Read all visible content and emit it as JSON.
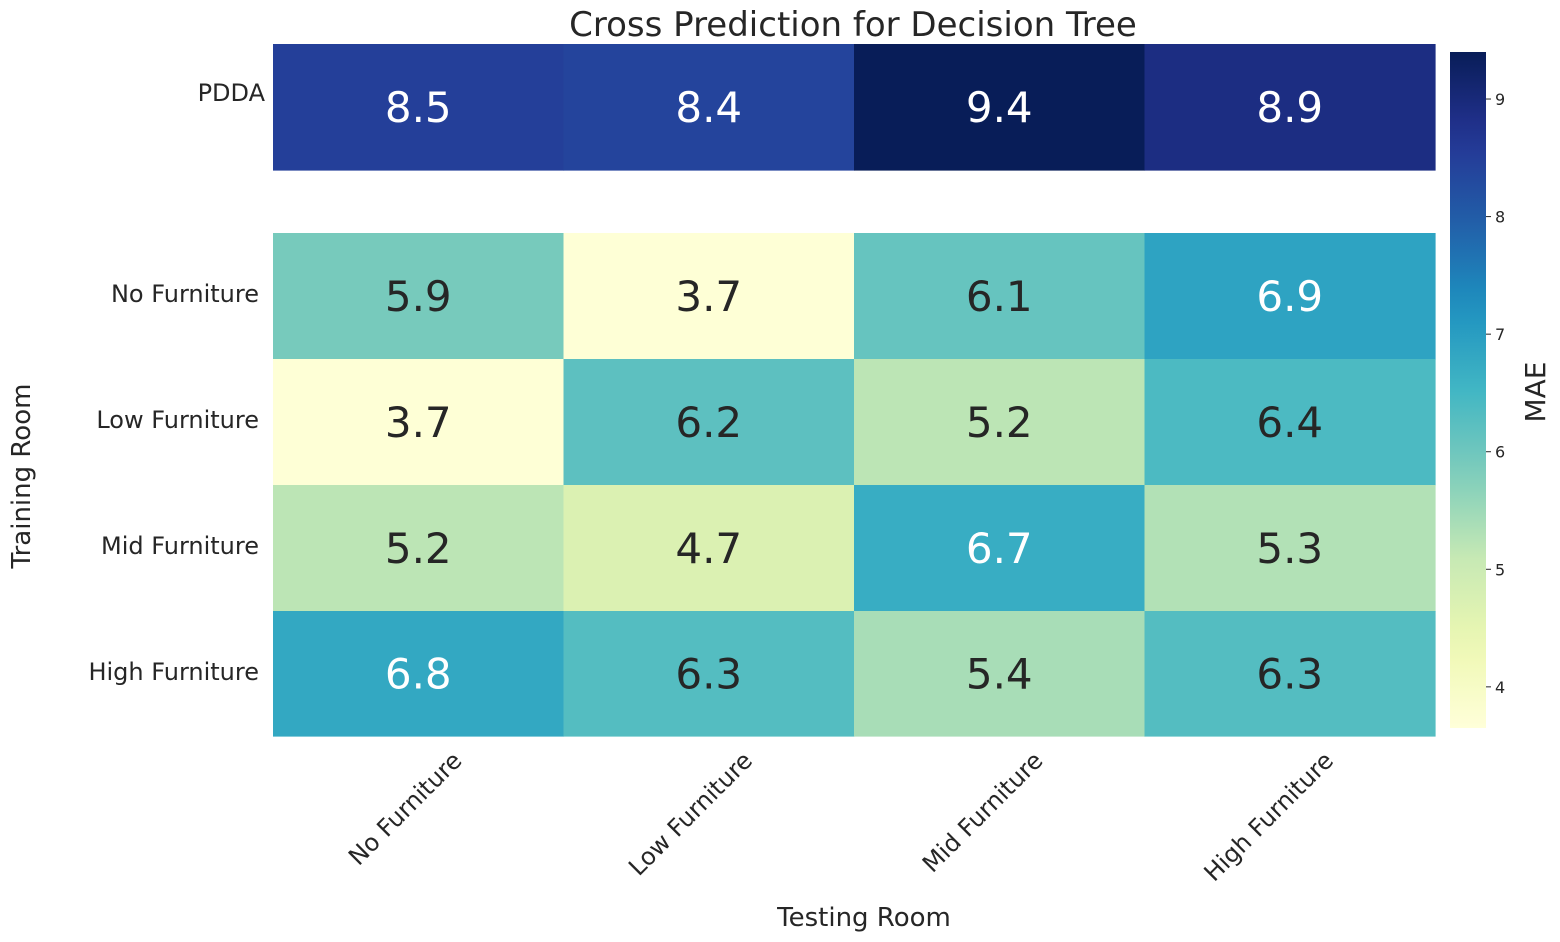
{
  "chart_data": {
    "type": "heatmap",
    "title": "Cross Prediction for Decision Tree",
    "xlabel": "Testing Room",
    "ylabel": "Training Room",
    "x_categories": [
      "No Furniture",
      "Low Furniture",
      "Mid Furniture",
      "High Furniture"
    ],
    "y_categories": [
      "PDDA",
      "No Furniture",
      "Low Furniture",
      "Mid Furniture",
      "High Furniture"
    ],
    "values": [
      [
        8.5,
        8.4,
        9.4,
        8.9
      ],
      [
        5.9,
        3.7,
        6.1,
        6.9
      ],
      [
        3.7,
        6.2,
        5.2,
        6.4
      ],
      [
        5.2,
        4.7,
        6.7,
        5.3
      ],
      [
        6.8,
        6.3,
        5.4,
        6.3
      ]
    ],
    "value_labels": [
      [
        "8.5",
        "8.4",
        "9.4",
        "8.9"
      ],
      [
        "5.9",
        "3.7",
        "6.1",
        "6.9"
      ],
      [
        "3.7",
        "6.2",
        "5.2",
        "6.4"
      ],
      [
        "5.2",
        "4.7",
        "6.7",
        "5.3"
      ],
      [
        "6.8",
        "6.3",
        "5.4",
        "6.3"
      ]
    ],
    "colorbar": {
      "label": "MAE",
      "range": [
        3.65,
        9.4
      ],
      "ticks": [
        4,
        5,
        6,
        7,
        8,
        9
      ],
      "tick_labels": [
        "4",
        "5",
        "6",
        "7",
        "8",
        "9"
      ],
      "colormap": "YlGnBu"
    },
    "grid": false
  }
}
